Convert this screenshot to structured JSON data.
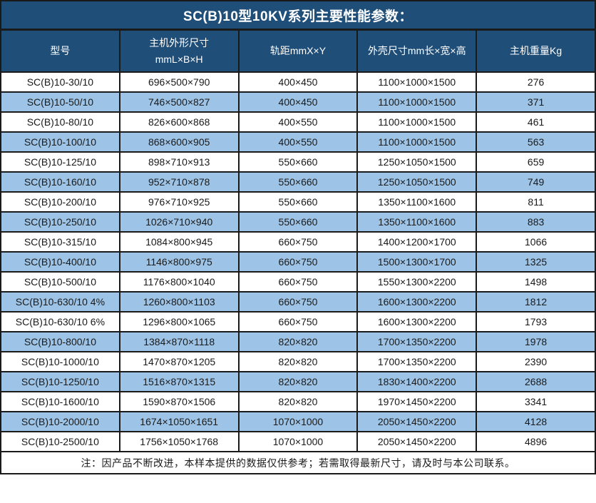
{
  "title": "SC(B)10型10KV系列主要性能参数：",
  "note": "注：因产品不断改进，本样本提供的数据仅供参考；若需取得最新尺寸，请及时与本公司联系。",
  "colors": {
    "header_bg": "#1F4E79",
    "header_text": "#FFFFFF",
    "row_bg": "#FFFFFF",
    "row_alt_bg": "#9DC3E6",
    "border": "#1A1A1A",
    "text": "#1A1A1A"
  },
  "table": {
    "column_keys": [
      "model",
      "host-dimensions",
      "rail-gauge",
      "shell-dimensions",
      "weight"
    ],
    "headers": [
      "型号",
      "主机外形尺寸\nmmL×B×H",
      "轨距mmX×Y",
      "外壳尺寸mm长×宽×高",
      "主机重量Kg"
    ],
    "rows": [
      [
        "SC(B)10-30/10",
        "696×500×790",
        "400×450",
        "1100×1000×1500",
        276
      ],
      [
        "SC(B)10-50/10",
        "746×500×827",
        "400×450",
        "1100×1000×1500",
        371
      ],
      [
        "SC(B)10-80/10",
        "826×600×868",
        "400×550",
        "1100×1000×1500",
        461
      ],
      [
        "SC(B)10-100/10",
        "868×600×905",
        "400×550",
        "1100×1000×1500",
        563
      ],
      [
        "SC(B)10-125/10",
        "898×710×913",
        "550×660",
        "1250×1050×1500",
        659
      ],
      [
        "SC(B)10-160/10",
        "952×710×878",
        "550×660",
        "1250×1050×1500",
        749
      ],
      [
        "SC(B)10-200/10",
        "976×710×925",
        "550×660",
        "1350×1100×1600",
        811
      ],
      [
        "SC(B)10-250/10",
        "1026×710×940",
        "550×660",
        "1350×1100×1600",
        883
      ],
      [
        "SC(B)10-315/10",
        "1084×800×945",
        "660×750",
        "1400×1200×1700",
        1066
      ],
      [
        "SC(B)10-400/10",
        "1146×800×975",
        "660×750",
        "1500×1300×1700",
        1325
      ],
      [
        "SC(B)10-500/10",
        "1176×800×1040",
        "660×750",
        "1550×1300×2200",
        1498
      ],
      [
        "SC(B)10-630/10 4%",
        "1260×800×1103",
        "660×750",
        "1600×1300×2200",
        1812
      ],
      [
        "SC(B)10-630/10 6%",
        "1296×800×1065",
        "660×750",
        "1600×1300×2200",
        1793
      ],
      [
        "SC(B)10-800/10",
        "1384×870×1118",
        "820×820",
        "1700×1350×2200",
        1978
      ],
      [
        "SC(B)10-1000/10",
        "1470×870×1205",
        "820×820",
        "1700×1350×2200",
        2390
      ],
      [
        "SC(B)10-1250/10",
        "1516×870×1315",
        "820×820",
        "1830×1400×2200",
        2688
      ],
      [
        "SC(B)10-1600/10",
        "1590×870×1506",
        "820×820",
        "1970×1450×2200",
        3341
      ],
      [
        "SC(B)10-2000/10",
        "1674×1050×1651",
        "1070×1000",
        "2050×1450×2200",
        4128
      ],
      [
        "SC(B)10-2500/10",
        "1756×1050×1768",
        "1070×1000",
        "2050×1450×2200",
        4896
      ]
    ]
  }
}
